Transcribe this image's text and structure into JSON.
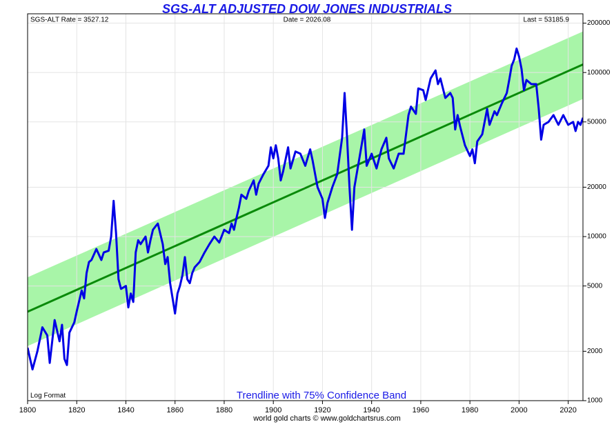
{
  "chart_data": {
    "type": "line",
    "title": "SGS-ALT ADJUSTED DOW JONES INDUSTRIALS",
    "info_left": "SGS-ALT Rate = 3527.12",
    "info_center": "Date = 2026.08",
    "info_right": "Last = 53185.9",
    "scale_note": "Log Format",
    "band_note": "Trendline with 75% Confidence Band",
    "footer": "world gold charts © www.goldchartsrus.com",
    "log_scale": true,
    "grid": true,
    "xlim": [
      1800,
      2026
    ],
    "xticks": [
      1800,
      1820,
      1840,
      1860,
      1880,
      1900,
      1920,
      1940,
      1960,
      1980,
      2000,
      2020
    ],
    "ylim": [
      1000,
      228000
    ],
    "yticks": [
      1000,
      2000,
      5000,
      10000,
      20000,
      50000,
      100000,
      200000
    ],
    "color": "#0000e6",
    "x": [
      1800,
      1802,
      1804,
      1806,
      1808,
      1809,
      1811,
      1813,
      1814,
      1815,
      1816,
      1817,
      1819,
      1820,
      1822,
      1823,
      1824,
      1825,
      1826,
      1828,
      1830,
      1831,
      1833,
      1834,
      1835,
      1836,
      1837,
      1838,
      1840,
      1841,
      1842,
      1843,
      1844,
      1845,
      1846,
      1848,
      1849,
      1850,
      1851,
      1852,
      1853,
      1855,
      1856,
      1857,
      1858,
      1859,
      1860,
      1861,
      1862,
      1863,
      1864,
      1865,
      1866,
      1867,
      1868,
      1870,
      1872,
      1874,
      1876,
      1878,
      1880,
      1882,
      1883,
      1884,
      1885,
      1886,
      1887,
      1889,
      1890,
      1892,
      1893,
      1894,
      1896,
      1898,
      1899,
      1900,
      1901,
      1902,
      1903,
      1904,
      1906,
      1907,
      1909,
      1911,
      1913,
      1915,
      1916,
      1918,
      1920,
      1921,
      1922,
      1924,
      1926,
      1928,
      1929,
      1930,
      1931,
      1932,
      1933,
      1935,
      1937,
      1938,
      1940,
      1942,
      1944,
      1946,
      1947,
      1949,
      1951,
      1953,
      1955,
      1956,
      1958,
      1959,
      1961,
      1962,
      1964,
      1966,
      1967,
      1968,
      1970,
      1972,
      1973,
      1974,
      1975,
      1976,
      1978,
      1980,
      1981,
      1982,
      1983,
      1985,
      1987,
      1988,
      1990,
      1991,
      1993,
      1995,
      1996,
      1997,
      1998,
      1999,
      2000,
      2001,
      2002,
      2003,
      2005,
      2007,
      2008,
      2009,
      2010,
      2012,
      2014,
      2016,
      2018,
      2020,
      2022,
      2023,
      2024,
      2025,
      2026
    ],
    "values": [
      2100,
      1550,
      2000,
      2800,
      2500,
      1700,
      3100,
      2300,
      2900,
      1800,
      1650,
      2600,
      3000,
      3500,
      4700,
      4200,
      6000,
      7000,
      7200,
      8400,
      7200,
      8000,
      8200,
      10000,
      16500,
      10500,
      5500,
      4800,
      5000,
      3700,
      4500,
      4000,
      8000,
      9500,
      9000,
      10000,
      8000,
      9500,
      11000,
      11500,
      12000,
      9000,
      6800,
      7500,
      5200,
      4200,
      3400,
      4500,
      5000,
      5800,
      7500,
      5500,
      5200,
      6000,
      6500,
      7000,
      8000,
      9000,
      10000,
      9200,
      11000,
      10500,
      12000,
      11000,
      13000,
      15000,
      18000,
      17000,
      19000,
      22000,
      18000,
      21000,
      24000,
      27000,
      35000,
      30000,
      36000,
      30000,
      22000,
      25000,
      35000,
      26000,
      33000,
      32000,
      27000,
      34000,
      29000,
      20000,
      17000,
      13000,
      16000,
      20000,
      24000,
      40000,
      75000,
      40000,
      20000,
      11000,
      20000,
      30000,
      45000,
      27000,
      32000,
      26000,
      34000,
      40000,
      30000,
      26000,
      32000,
      32000,
      55000,
      62000,
      56000,
      80000,
      78000,
      68000,
      92000,
      103000,
      85000,
      92000,
      70000,
      75000,
      70000,
      45000,
      55000,
      47000,
      36000,
      31000,
      34000,
      28000,
      38000,
      42000,
      60000,
      48000,
      58000,
      55000,
      65000,
      75000,
      90000,
      110000,
      120000,
      140000,
      125000,
      105000,
      78000,
      90000,
      85000,
      85000,
      60000,
      39000,
      48000,
      50000,
      55000,
      48000,
      55000,
      48000,
      50000,
      44000,
      50000,
      48000,
      53000
    ],
    "trend": {
      "color": "#0a8a0a",
      "x": [
        1800,
        2026
      ],
      "values": [
        3485,
        112000
      ]
    },
    "band": {
      "color": "#a8f5a8",
      "x": [
        1800,
        2026
      ],
      "upper": [
        5650,
        178000
      ],
      "lower": [
        2150,
        69000
      ]
    }
  }
}
